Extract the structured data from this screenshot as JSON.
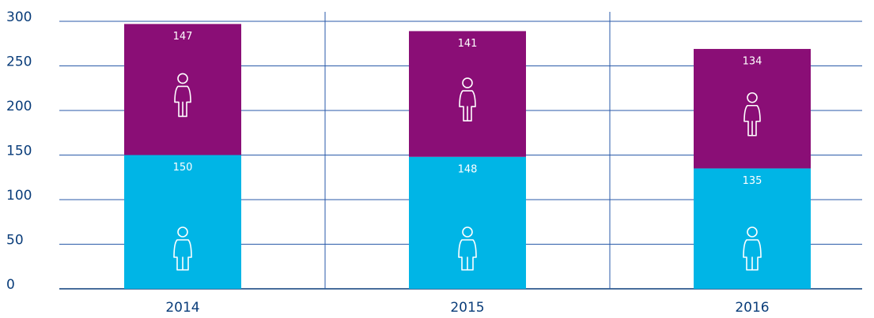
{
  "chart_data": {
    "type": "stacked_bar",
    "categories": [
      "2014",
      "2015",
      "2016"
    ],
    "series": [
      {
        "color": "#00b5e6",
        "values": [
          150,
          148,
          135
        ]
      },
      {
        "color": "#8a0e76",
        "values": [
          147,
          141,
          134
        ]
      }
    ],
    "ylim": [
      0,
      300
    ],
    "yticks": [
      0,
      50,
      100,
      150,
      200,
      250,
      300
    ],
    "grid": true
  }
}
